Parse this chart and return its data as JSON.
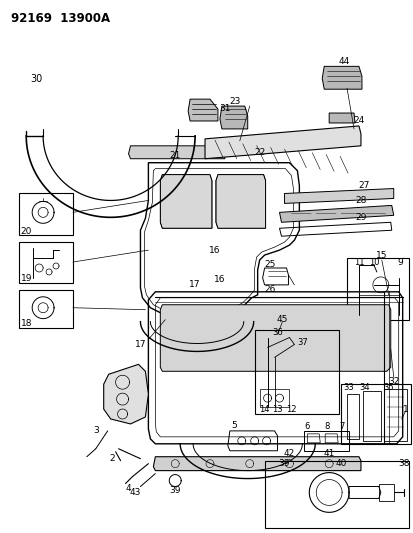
{
  "title": "92169  13900A",
  "bg_color": "#ffffff",
  "line_color": "#000000",
  "fig_width": 4.14,
  "fig_height": 5.33,
  "dpi": 100
}
